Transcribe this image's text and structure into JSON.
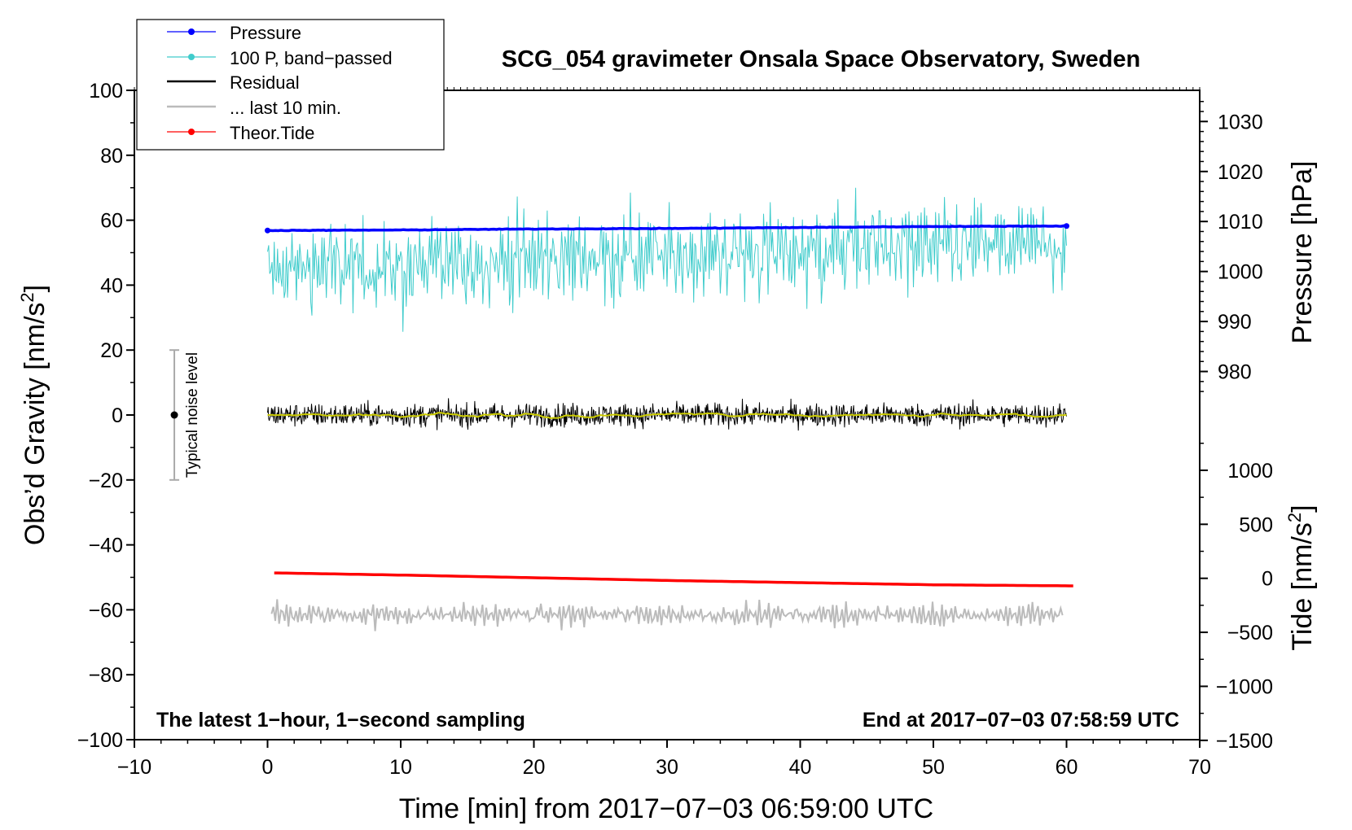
{
  "chart_data": {
    "type": "line",
    "title": "SCG_054 gravimeter Onsala Space Observatory, Sweden",
    "xlabel": "Time [min] from 2017−07−03 06:59:00 UTC",
    "ylabel": "Obs’d Gravity [nm/s²]",
    "ylabel_main": "Obs’d Gravity [nm/s",
    "ylabel_sup": "2",
    "ylabel_close": "]",
    "pressure_label": "Pressure [hPa]",
    "tide_label_main": "Tide [nm/s",
    "tide_label_sup": "2",
    "tide_label_close": "]",
    "xlim": [
      -10,
      70
    ],
    "ylim": [
      -100,
      100
    ],
    "x_ticks": [
      -10,
      0,
      10,
      20,
      30,
      40,
      50,
      60,
      70
    ],
    "x_tick_labels": [
      "−10",
      "0",
      "10",
      "20",
      "30",
      "40",
      "50",
      "60",
      "70"
    ],
    "y_ticks": [
      -100,
      -80,
      -60,
      -40,
      -20,
      0,
      20,
      40,
      60,
      80,
      100
    ],
    "y_tick_labels": [
      "−100",
      "−80",
      "−60",
      "−40",
      "−20",
      "0",
      "20",
      "40",
      "60",
      "80",
      "100"
    ],
    "pressure_axis": {
      "ticks": [
        980,
        990,
        1000,
        1010,
        1020,
        1030
      ],
      "tick_labels": [
        "980",
        "990",
        "1000",
        "1010",
        "1020",
        "1030"
      ],
      "ref_value": 1010,
      "ref_gravity": 59.6,
      "gravity_per_hpa": 1.54
    },
    "tide_axis": {
      "ticks": [
        -1500,
        -1000,
        -500,
        0,
        500,
        1000
      ],
      "tick_labels": [
        "−1500",
        "−1000",
        "−500",
        "0",
        "500",
        "1000"
      ],
      "ref_value": 0,
      "ref_gravity": -50.3,
      "gravity_per_unit": 0.03327
    },
    "series": [
      {
        "name": "Pressure",
        "color": "#0000ff",
        "x": [
          0,
          10,
          20,
          30,
          40,
          50,
          60
        ],
        "values": [
          1008.2,
          1008.3,
          1008.5,
          1008.6,
          1008.8,
          1009.0,
          1009.1
        ],
        "unit": "hPa"
      },
      {
        "name": "100 P, band−passed",
        "color": "#40cccc",
        "x": [
          0,
          5,
          10,
          15,
          20,
          25,
          30,
          35,
          40,
          45,
          50,
          55,
          60
        ],
        "center": [
          44,
          46,
          45,
          47,
          48,
          49,
          49,
          50,
          50,
          52,
          51,
          52,
          52
        ],
        "amplitude": [
          9,
          11,
          13,
          11,
          12,
          11,
          12,
          11,
          12,
          13,
          11,
          12,
          10
        ],
        "min": 23,
        "max": 70
      },
      {
        "name": "Residual",
        "color": "#000000",
        "x": [
          0,
          10,
          20,
          30,
          40,
          50,
          60
        ],
        "center": [
          0,
          0,
          0,
          0,
          0,
          0,
          0
        ],
        "amplitude": 3.2,
        "min": -8,
        "max": 7
      },
      {
        "name": "... last 10 min.",
        "color": "#bbbbbb",
        "x": [
          0,
          10,
          20,
          30,
          40,
          50,
          60
        ],
        "center": [
          -61.5,
          -61.5,
          -61.5,
          -61.5,
          -61.5,
          -61.5,
          -61.5
        ],
        "amplitude": 3.5,
        "min": -68,
        "max": -56
      },
      {
        "name": "Theor.Tide",
        "color": "#ff0000",
        "x": [
          0.5,
          10,
          20,
          30,
          40,
          50,
          60.5
        ],
        "values": [
          50,
          30,
          5,
          -20,
          -40,
          -60,
          -70
        ],
        "unit": "nm/s²"
      }
    ],
    "smoothed_residual_color": "#cccc00",
    "legend": {
      "placement": "top-left",
      "entries": [
        "Pressure",
        "100 P, band−passed",
        "Residual",
        "... last 10 min.",
        "Theor.Tide"
      ]
    },
    "noise_level": {
      "label": "Typical noise level",
      "x": -7,
      "center": 0,
      "low": -20,
      "high": 20
    },
    "annotations": {
      "bottom_left": "The latest 1−hour, 1−second sampling",
      "bottom_right": "End at 2017−07−03 07:58:59 UTC"
    }
  }
}
